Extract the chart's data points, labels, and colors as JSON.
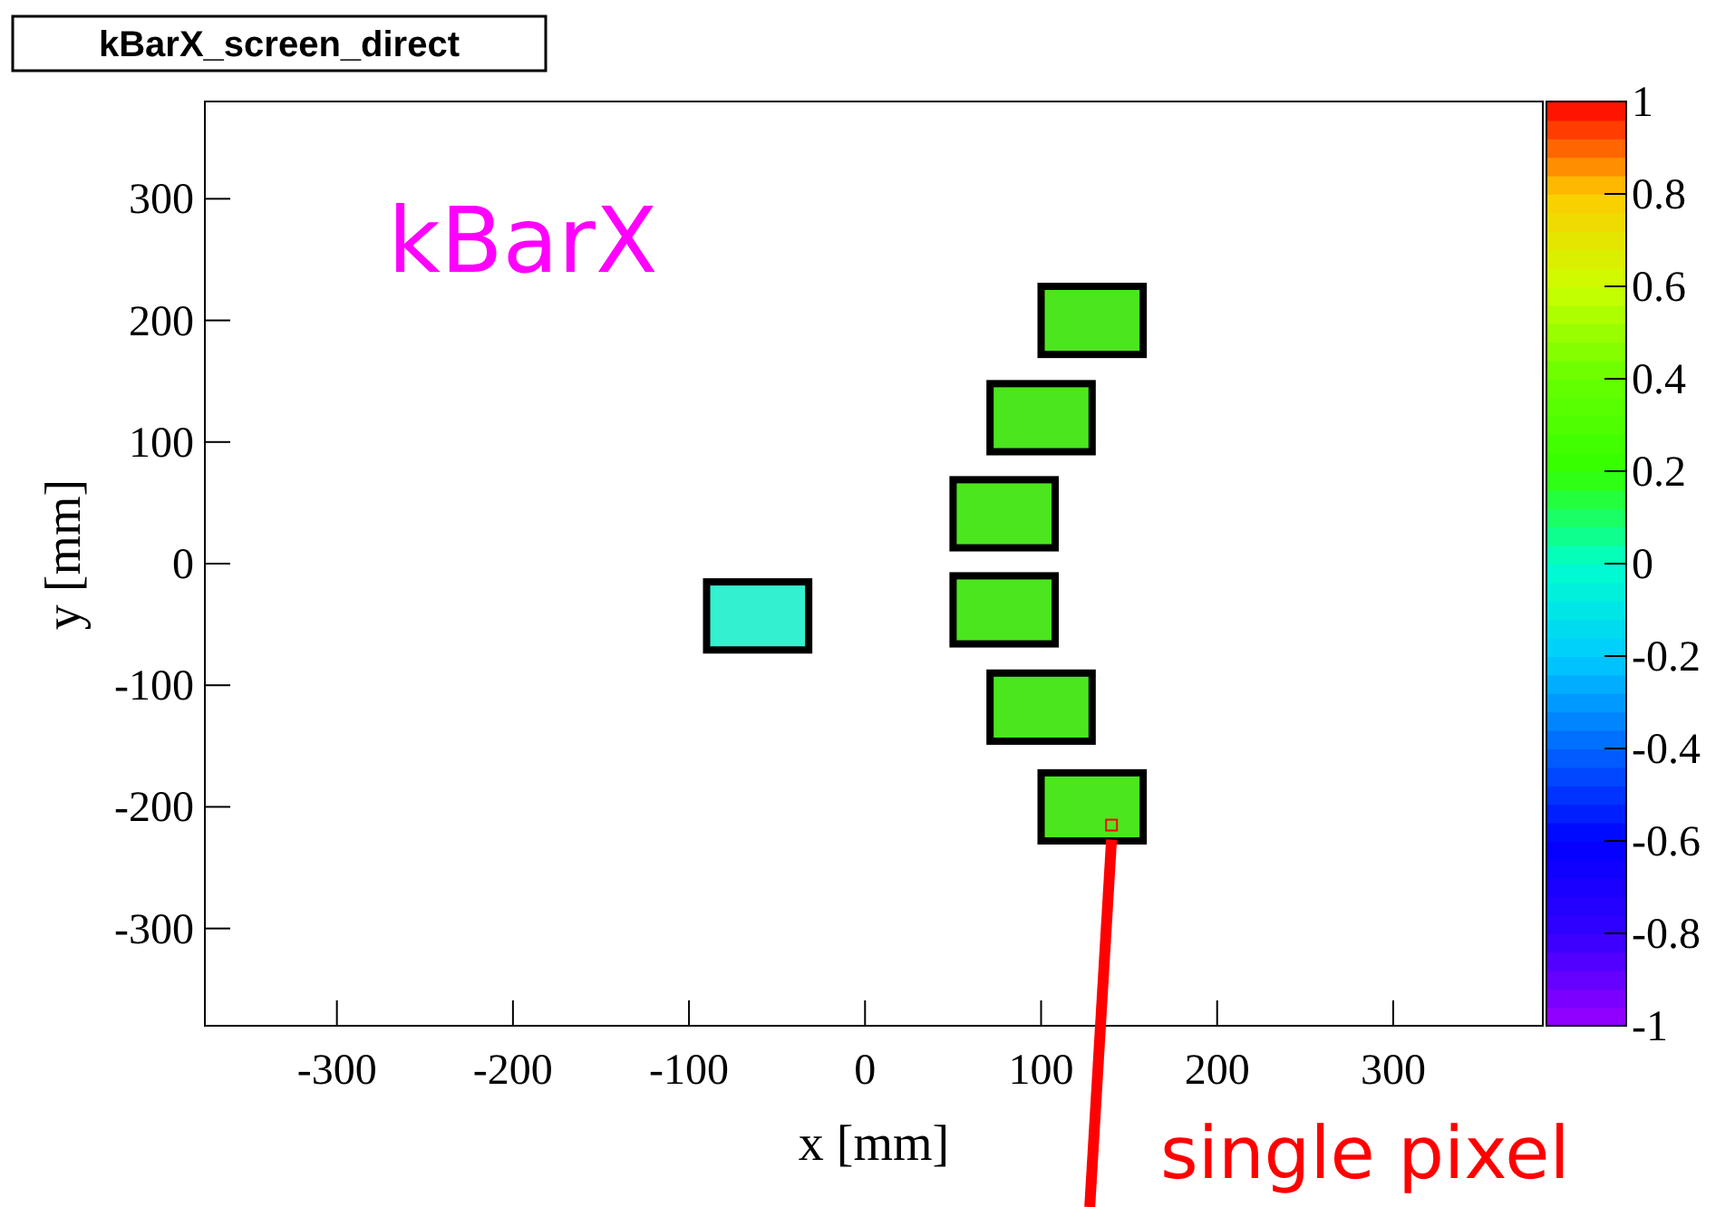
{
  "chart_data": {
    "type": "bar",
    "title": "kBarX_screen_direct",
    "xlabel": "x [mm]",
    "ylabel": "y [mm]",
    "series": [
      {
        "x": [
          -61,
          79,
          100,
          129
        ],
        "base": [
          -71,
          13,
          92,
          172
        ],
        "values": [
          56,
          56,
          56,
          56
        ],
        "colors": [
          "#33f0d0",
          "#4be61e",
          "#4be61e",
          "#4be61e"
        ]
      },
      {
        "x": [
          79,
          100,
          129
        ],
        "base": [
          -66,
          -146,
          -228
        ],
        "values": [
          56,
          56,
          56
        ],
        "colors": [
          "#4be61e",
          "#4be61e",
          "#4be61e"
        ]
      }
    ],
    "clim": [
      -1,
      1
    ],
    "cticks": [
      -1,
      -0.8,
      -0.6,
      -0.4,
      -0.2,
      0,
      0.2,
      0.4,
      0.6,
      0.8,
      1
    ],
    "xlim": [
      -375,
      385
    ],
    "ylim": [
      -380,
      380
    ],
    "xticks": [
      -300,
      -200,
      -100,
      0,
      100,
      200,
      300
    ],
    "yticks": [
      -300,
      -200,
      -100,
      0,
      100,
      200,
      300
    ],
    "grid": false,
    "annotations": [
      "kBarX",
      {
        "text": "single pixel",
        "x": 140,
        "y": -215
      }
    ]
  }
}
